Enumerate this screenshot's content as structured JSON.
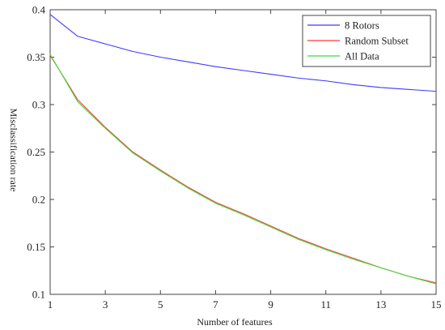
{
  "chart_data": {
    "type": "line",
    "title": "",
    "xlabel": "Number of features",
    "ylabel": "Misclassification rate",
    "xlim": [
      1,
      15
    ],
    "ylim": [
      0.1,
      0.4
    ],
    "xticks": [
      1,
      3,
      5,
      7,
      9,
      11,
      13,
      15
    ],
    "yticks": [
      0.1,
      0.15,
      0.2,
      0.25,
      0.3,
      0.35,
      0.4
    ],
    "xtick_labels": [
      "1",
      "3",
      "5",
      "7",
      "9",
      "11",
      "13",
      "15"
    ],
    "ytick_labels": [
      "0.1",
      "0.15",
      "0.2",
      "0.25",
      "0.3",
      "0.35",
      "0.4"
    ],
    "grid": false,
    "legend_position": "top-right",
    "x": [
      1,
      2,
      3,
      4,
      5,
      6,
      7,
      8,
      9,
      10,
      11,
      12,
      13,
      14,
      15
    ],
    "series": [
      {
        "name": "8 Rotors",
        "color": "#3b3bff",
        "values": [
          0.395,
          0.372,
          0.364,
          0.356,
          0.35,
          0.345,
          0.34,
          0.336,
          0.332,
          0.328,
          0.325,
          0.321,
          0.318,
          0.316,
          0.314
        ]
      },
      {
        "name": "Random Subset",
        "color": "#ff3b3b",
        "values": [
          0.352,
          0.305,
          0.276,
          0.25,
          0.231,
          0.213,
          0.197,
          0.185,
          0.172,
          0.159,
          0.148,
          0.138,
          0.128,
          0.119,
          0.112
        ]
      },
      {
        "name": "All Data",
        "color": "#3bdc3b",
        "values": [
          0.353,
          0.303,
          0.275,
          0.249,
          0.23,
          0.212,
          0.196,
          0.184,
          0.171,
          0.158,
          0.147,
          0.137,
          0.128,
          0.119,
          0.111
        ]
      }
    ]
  }
}
